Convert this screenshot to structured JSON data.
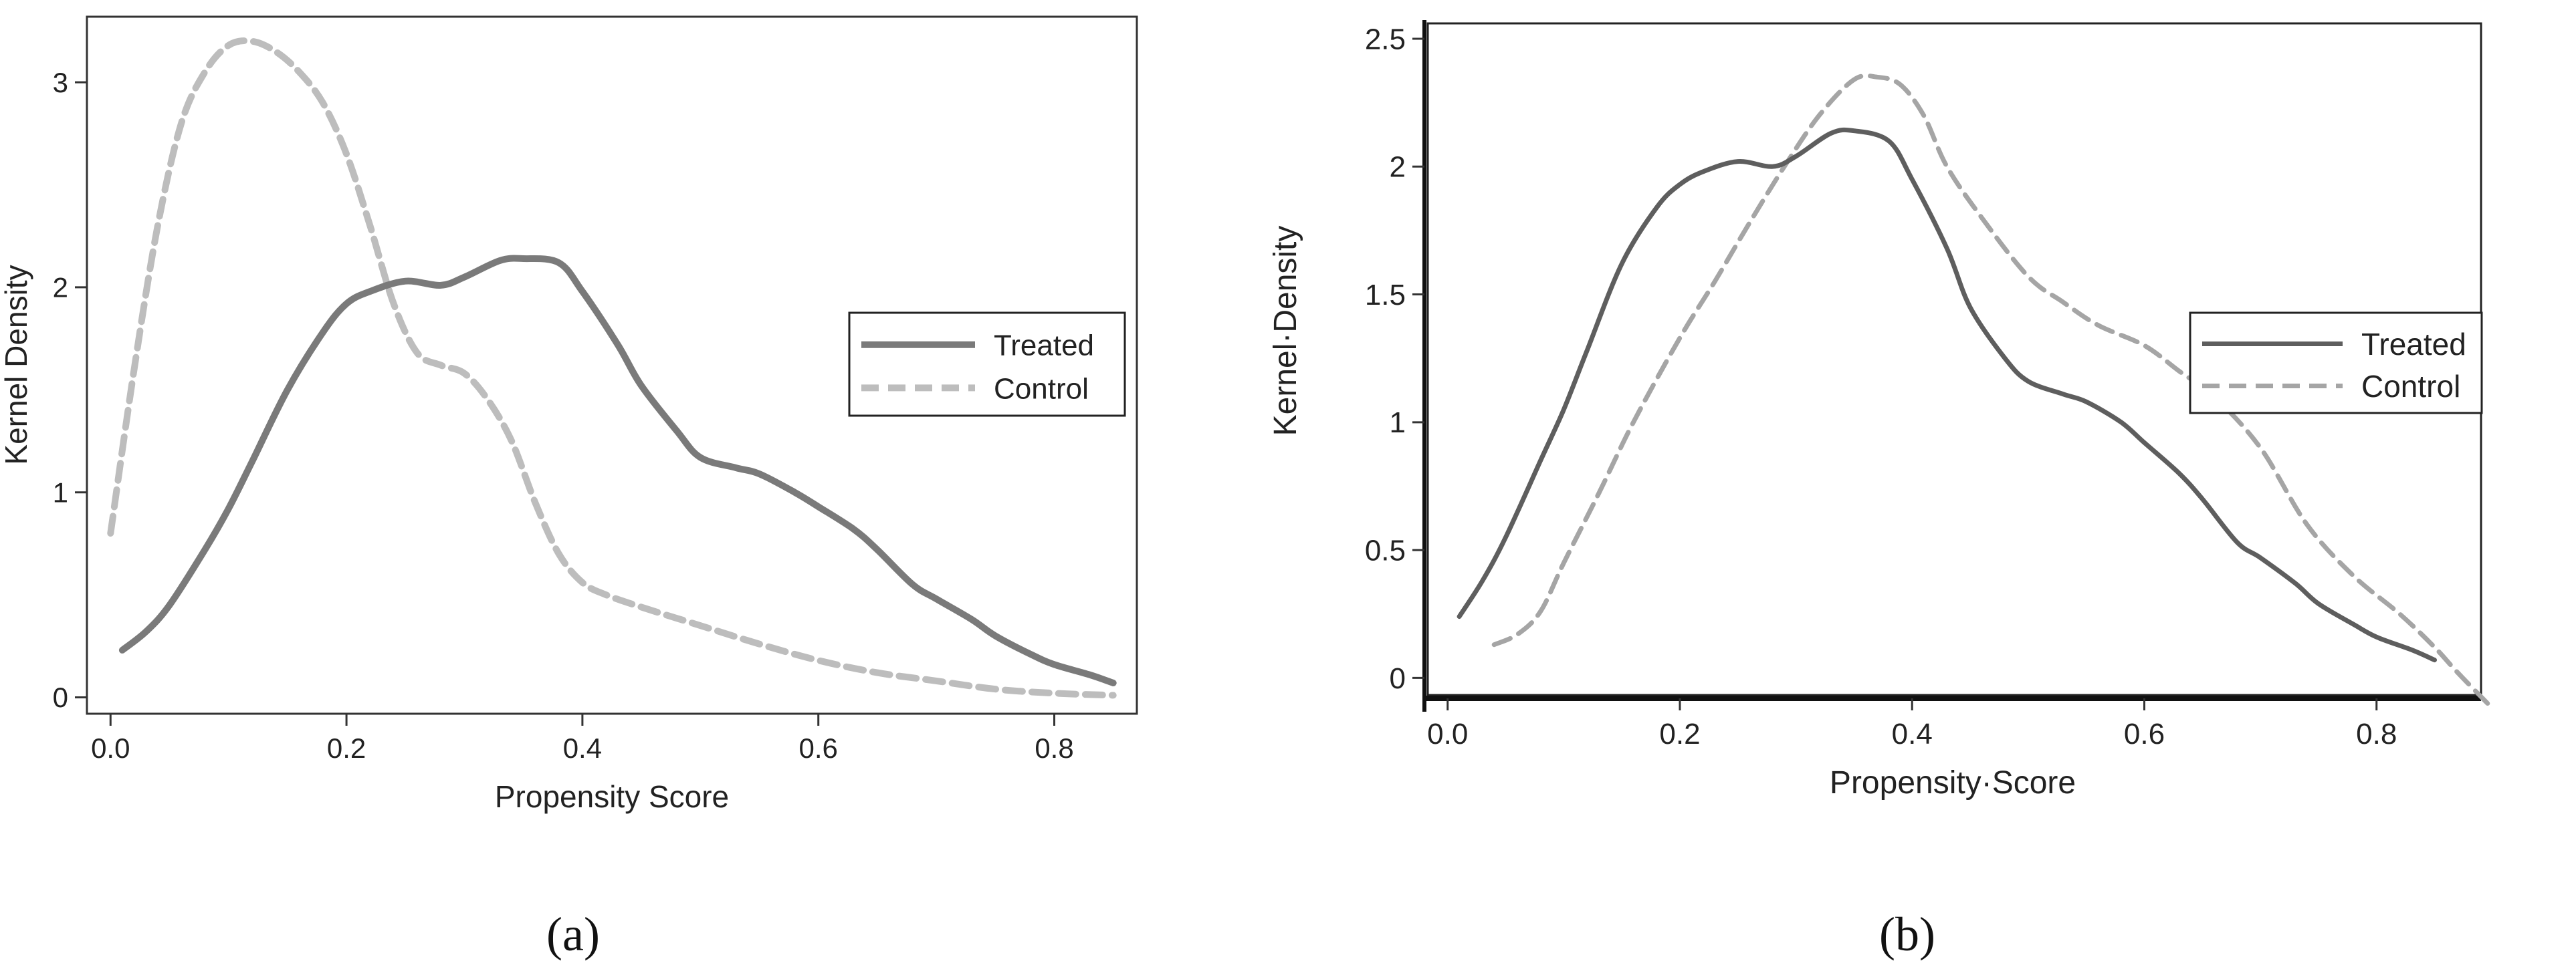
{
  "figure": {
    "panel_labels": [
      "(a)",
      "(b)"
    ]
  },
  "chart_data": [
    {
      "type": "line",
      "panel": "(a)",
      "xlabel": "Propensity Score",
      "ylabel": "Kernel Density",
      "xlim": [
        -0.02,
        0.87
      ],
      "ylim": [
        -0.08,
        3.32
      ],
      "xticks": [
        0.0,
        0.2,
        0.4,
        0.6,
        0.8
      ],
      "xtick_labels": [
        "0.0",
        "0.2",
        "0.4",
        "0.6",
        "0.8"
      ],
      "yticks": [
        0,
        1,
        2,
        3
      ],
      "ytick_labels": [
        "0",
        "1",
        "2",
        "3"
      ],
      "grid": false,
      "legend_position": "right",
      "series": [
        {
          "name": "Treated",
          "style": "solid",
          "color": "#7a7a7a",
          "x": [
            0.01,
            0.03,
            0.05,
            0.08,
            0.1,
            0.12,
            0.15,
            0.18,
            0.2,
            0.22,
            0.25,
            0.28,
            0.3,
            0.33,
            0.35,
            0.38,
            0.4,
            0.43,
            0.45,
            0.48,
            0.5,
            0.53,
            0.55,
            0.58,
            0.6,
            0.63,
            0.65,
            0.68,
            0.7,
            0.73,
            0.75,
            0.78,
            0.8,
            0.83,
            0.85
          ],
          "y": [
            0.23,
            0.32,
            0.45,
            0.72,
            0.92,
            1.15,
            1.5,
            1.78,
            1.92,
            1.98,
            2.03,
            2.01,
            2.05,
            2.13,
            2.14,
            2.12,
            1.98,
            1.72,
            1.52,
            1.3,
            1.17,
            1.12,
            1.09,
            1.0,
            0.93,
            0.82,
            0.72,
            0.55,
            0.48,
            0.38,
            0.3,
            0.21,
            0.16,
            0.11,
            0.07
          ]
        },
        {
          "name": "Control",
          "style": "dashed",
          "color": "#bdbdbd",
          "x": [
            0.0,
            0.02,
            0.04,
            0.06,
            0.08,
            0.1,
            0.12,
            0.14,
            0.16,
            0.18,
            0.2,
            0.22,
            0.24,
            0.26,
            0.28,
            0.3,
            0.32,
            0.34,
            0.36,
            0.38,
            0.4,
            0.42,
            0.45,
            0.5,
            0.55,
            0.6,
            0.65,
            0.7,
            0.75,
            0.8,
            0.85
          ],
          "y": [
            0.8,
            1.6,
            2.3,
            2.8,
            3.05,
            3.18,
            3.2,
            3.15,
            3.05,
            2.9,
            2.65,
            2.3,
            1.92,
            1.68,
            1.62,
            1.58,
            1.45,
            1.25,
            0.95,
            0.7,
            0.56,
            0.5,
            0.44,
            0.35,
            0.26,
            0.18,
            0.12,
            0.08,
            0.04,
            0.02,
            0.01
          ]
        }
      ]
    },
    {
      "type": "line",
      "panel": "(b)",
      "xlabel": "Propensity·Score",
      "ylabel": "Kernel·Density",
      "xlim": [
        -0.02,
        0.89
      ],
      "ylim": [
        -0.08,
        2.56
      ],
      "xticks": [
        0.0,
        0.2,
        0.4,
        0.6,
        0.8
      ],
      "xtick_labels": [
        "0.0",
        "0.2",
        "0.4",
        "0.6",
        "0.8"
      ],
      "yticks": [
        0,
        0.5,
        1,
        1.5,
        2,
        2.5
      ],
      "ytick_labels": [
        "0",
        "0.5",
        "1",
        "1.5",
        "2",
        "2.5"
      ],
      "grid": false,
      "legend_position": "right",
      "series": [
        {
          "name": "Treated",
          "style": "solid",
          "color": "#5e5e5e",
          "x": [
            0.01,
            0.03,
            0.05,
            0.08,
            0.1,
            0.12,
            0.15,
            0.18,
            0.2,
            0.22,
            0.25,
            0.28,
            0.3,
            0.33,
            0.35,
            0.38,
            0.4,
            0.43,
            0.45,
            0.48,
            0.5,
            0.53,
            0.55,
            0.58,
            0.6,
            0.63,
            0.65,
            0.68,
            0.7,
            0.73,
            0.75,
            0.78,
            0.8,
            0.83,
            0.85
          ],
          "y": [
            0.24,
            0.38,
            0.55,
            0.85,
            1.05,
            1.28,
            1.62,
            1.84,
            1.93,
            1.98,
            2.02,
            2.0,
            2.04,
            2.13,
            2.14,
            2.1,
            1.95,
            1.68,
            1.45,
            1.25,
            1.16,
            1.11,
            1.08,
            1.0,
            0.92,
            0.8,
            0.7,
            0.53,
            0.47,
            0.37,
            0.29,
            0.21,
            0.16,
            0.11,
            0.07
          ]
        },
        {
          "name": "Control",
          "style": "dashed",
          "color": "#a5a5a5",
          "x": [
            0.04,
            0.06,
            0.08,
            0.1,
            0.13,
            0.16,
            0.2,
            0.23,
            0.26,
            0.29,
            0.32,
            0.35,
            0.37,
            0.39,
            0.41,
            0.43,
            0.46,
            0.5,
            0.53,
            0.56,
            0.6,
            0.63,
            0.66,
            0.7,
            0.74,
            0.78,
            0.82,
            0.85,
            0.87,
            0.9
          ],
          "y": [
            0.13,
            0.17,
            0.26,
            0.45,
            0.72,
            1.0,
            1.33,
            1.55,
            1.78,
            2.0,
            2.2,
            2.34,
            2.35,
            2.32,
            2.2,
            2.0,
            1.8,
            1.57,
            1.47,
            1.38,
            1.3,
            1.2,
            1.1,
            0.9,
            0.6,
            0.4,
            0.25,
            0.12,
            0.02,
            -0.12
          ]
        }
      ]
    }
  ]
}
